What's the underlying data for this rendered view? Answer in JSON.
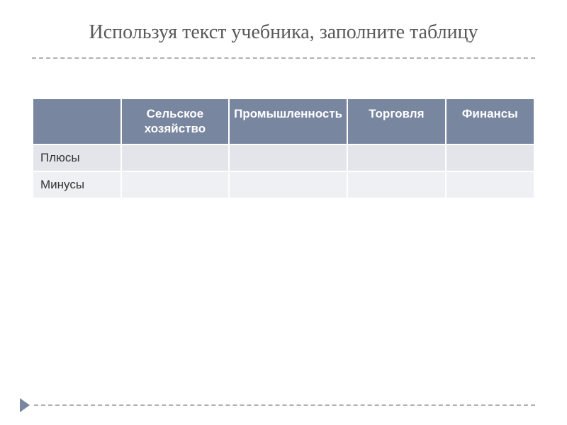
{
  "title": "Используя текст учебника, заполните таблицу",
  "table": {
    "columns": [
      "",
      "Сельское хозяйство",
      "Промышленность",
      "Торговля",
      "Финансы"
    ],
    "rows": [
      {
        "label": "Плюсы",
        "cells": [
          "",
          "",
          "",
          ""
        ]
      },
      {
        "label": "Минусы",
        "cells": [
          "",
          "",
          "",
          ""
        ]
      }
    ],
    "header_bg": "#7986a0",
    "header_text_color": "#ffffff",
    "row_bg_alt1": "#e3e5ea",
    "row_bg_alt2": "#eff0f3",
    "border_color": "#ffffff",
    "font_size": 17
  },
  "colors": {
    "title_color": "#595959",
    "dash_color": "#b0b0b0",
    "arrow_color": "#7986a0",
    "background": "#ffffff"
  }
}
